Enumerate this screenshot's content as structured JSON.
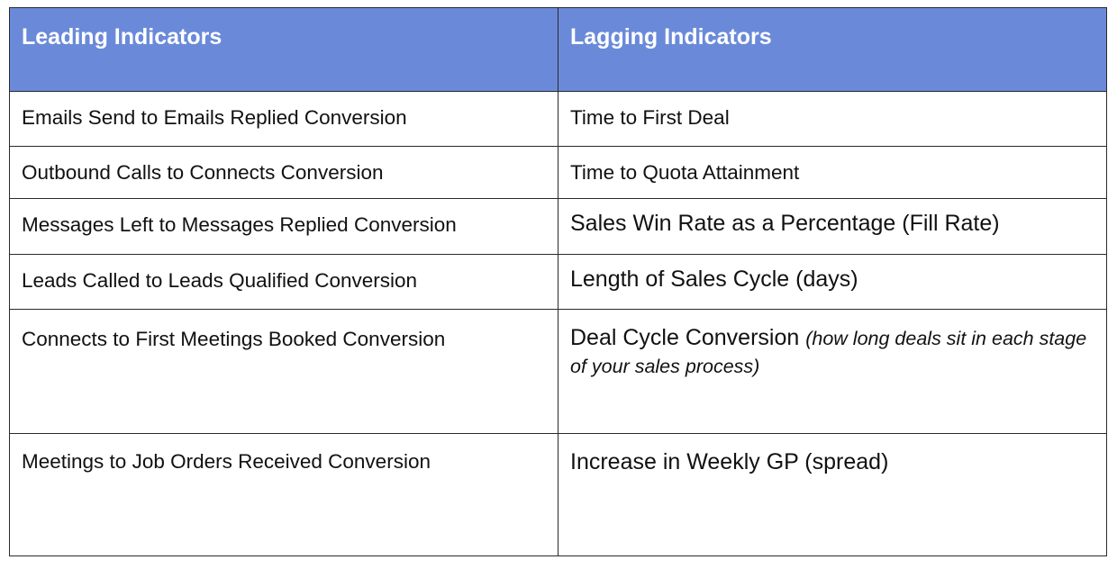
{
  "table": {
    "headers": [
      "Leading Indicators",
      "Lagging Indicators"
    ],
    "rows": [
      {
        "leading": "Emails Send to Emails Replied Conversion",
        "lagging": "Time to First Deal"
      },
      {
        "leading": "Outbound Calls to Connects Conversion",
        "lagging": "Time to Quota Attainment"
      },
      {
        "leading": "Messages Left to Messages Replied Conversion",
        "lagging": "Sales Win Rate as a Percentage (Fill Rate)"
      },
      {
        "leading": "Leads Called to Leads Qualified Conversion",
        "lagging": "Length of Sales Cycle (days)"
      },
      {
        "leading": "Connects to First Meetings Booked Conversion",
        "lagging": "Deal Cycle Conversion",
        "lagging_note": "(how long deals sit in each stage of your sales process)"
      },
      {
        "leading": "Meetings to Job Orders Received Conversion",
        "lagging": "Increase in Weekly GP (spread)"
      }
    ]
  },
  "colors": {
    "header_background": "#6a8ad9",
    "header_text": "#ffffff",
    "border": "#2a2a2a"
  }
}
